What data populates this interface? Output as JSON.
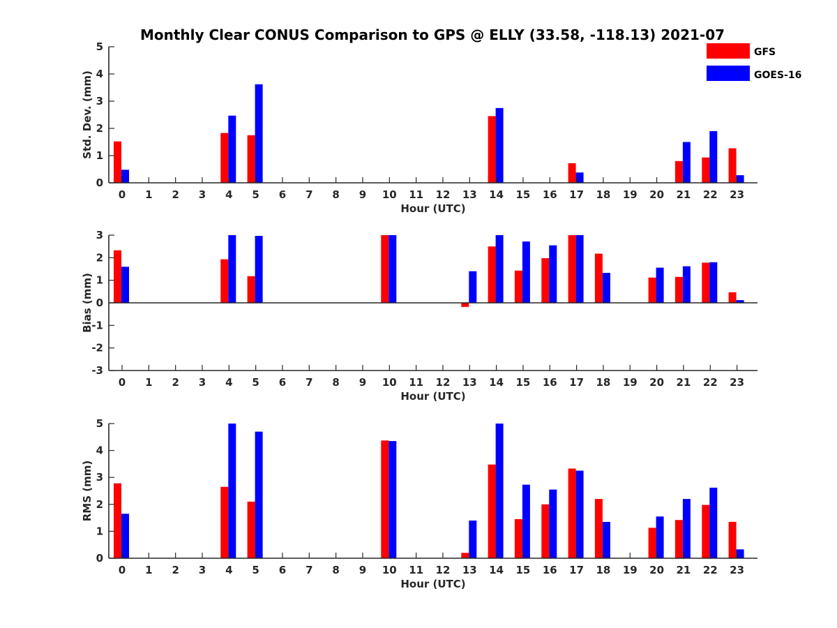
{
  "title": "Monthly Clear CONUS Comparison to GPS @ ELLY (33.58, -118.13) 2021-07",
  "legend": [
    {
      "name": "GFS",
      "color": "#ff0000"
    },
    {
      "name": "GOES-16",
      "color": "#0000ff"
    }
  ],
  "chart_data": [
    {
      "type": "bar",
      "xlabel": "Hour (UTC)",
      "ylabel": "Std. Dev. (mm)",
      "ylim": [
        0,
        5
      ],
      "yticks": [
        0,
        1,
        2,
        3,
        4,
        5
      ],
      "categories": [
        "0",
        "1",
        "2",
        "3",
        "4",
        "5",
        "6",
        "7",
        "8",
        "9",
        "10",
        "11",
        "12",
        "13",
        "14",
        "15",
        "16",
        "17",
        "18",
        "19",
        "20",
        "21",
        "22",
        "23"
      ],
      "series": [
        {
          "name": "GFS",
          "color": "#ff0000",
          "values": [
            1.52,
            0,
            0,
            0,
            1.83,
            1.75,
            0,
            0,
            0,
            0,
            0,
            0,
            0,
            0,
            2.45,
            0,
            0,
            0.72,
            0,
            0,
            0,
            0.8,
            0.93,
            1.27
          ]
        },
        {
          "name": "GOES-16",
          "color": "#0000ff",
          "values": [
            0.48,
            0,
            0,
            0,
            2.47,
            3.62,
            0,
            0,
            0,
            0,
            0,
            0,
            0,
            0,
            2.75,
            0,
            0,
            0.38,
            0,
            0,
            0,
            1.5,
            1.9,
            0.28
          ]
        }
      ]
    },
    {
      "type": "bar",
      "xlabel": "Hour (UTC)",
      "ylabel": "Bias (mm)",
      "ylim": [
        -3,
        3
      ],
      "yticks": [
        -3,
        -2,
        -1,
        0,
        1,
        2,
        3
      ],
      "categories": [
        "0",
        "1",
        "2",
        "3",
        "4",
        "5",
        "6",
        "7",
        "8",
        "9",
        "10",
        "11",
        "12",
        "13",
        "14",
        "15",
        "16",
        "17",
        "18",
        "19",
        "20",
        "21",
        "22",
        "23"
      ],
      "series": [
        {
          "name": "GFS",
          "color": "#ff0000",
          "values": [
            2.33,
            0,
            0,
            0,
            1.93,
            1.18,
            0,
            0,
            0,
            0,
            3.0,
            0,
            0,
            -0.18,
            2.5,
            1.43,
            1.98,
            3.0,
            2.18,
            0,
            1.12,
            1.15,
            1.78,
            0.47
          ]
        },
        {
          "name": "GOES-16",
          "color": "#0000ff",
          "values": [
            1.6,
            0,
            0,
            0,
            3.0,
            2.97,
            0,
            0,
            0,
            0,
            3.0,
            0,
            0,
            1.4,
            3.0,
            2.72,
            2.55,
            3.0,
            1.33,
            0,
            1.56,
            1.62,
            1.8,
            0.12
          ]
        }
      ]
    },
    {
      "type": "bar",
      "xlabel": "Hour (UTC)",
      "ylabel": "RMS (mm)",
      "ylim": [
        0,
        5
      ],
      "yticks": [
        0,
        1,
        2,
        3,
        4,
        5
      ],
      "categories": [
        "0",
        "1",
        "2",
        "3",
        "4",
        "5",
        "6",
        "7",
        "8",
        "9",
        "10",
        "11",
        "12",
        "13",
        "14",
        "15",
        "16",
        "17",
        "18",
        "19",
        "20",
        "21",
        "22",
        "23"
      ],
      "series": [
        {
          "name": "GFS",
          "color": "#ff0000",
          "values": [
            2.78,
            0,
            0,
            0,
            2.65,
            2.1,
            0,
            0,
            0,
            0,
            4.37,
            0,
            0,
            0.2,
            3.48,
            1.45,
            2.0,
            3.33,
            2.2,
            0,
            1.13,
            1.42,
            1.98,
            1.35
          ]
        },
        {
          "name": "GOES-16",
          "color": "#0000ff",
          "values": [
            1.65,
            0,
            0,
            0,
            5.0,
            4.7,
            0,
            0,
            0,
            0,
            4.35,
            0,
            0,
            1.4,
            5.0,
            2.73,
            2.55,
            3.25,
            1.35,
            0,
            1.55,
            2.2,
            2.62,
            0.33
          ]
        }
      ]
    }
  ]
}
